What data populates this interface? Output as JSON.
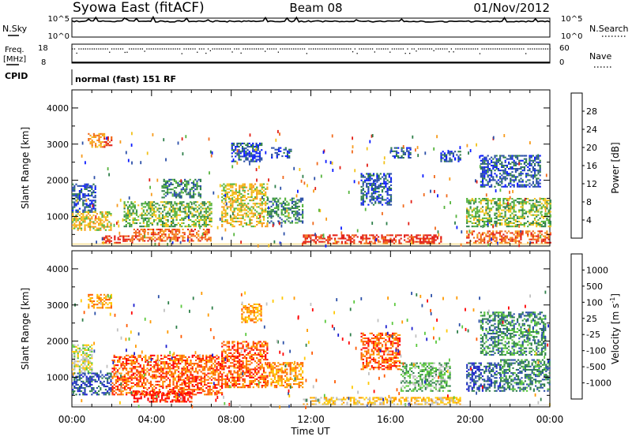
{
  "header": {
    "title": "Syowa East (fitACF)",
    "beam": "Beam 08",
    "date": "01/Nov/2012"
  },
  "nsky": {
    "label": "N.Sky",
    "left_ticks": [
      "10^5",
      "10^0"
    ],
    "right_label": "N.Search",
    "right_ticks": [
      "10^5",
      "10^0"
    ],
    "range_log": [
      0,
      5
    ],
    "level_log": 4.3
  },
  "freq": {
    "label_line1": "Freq.",
    "label_line2": "[MHz]",
    "left_ticks": [
      "18",
      "8"
    ],
    "right_label": "Nave",
    "right_ticks": [
      "60",
      "0"
    ],
    "freq_mhz_range": [
      8,
      18
    ],
    "nave_range": [
      0,
      60
    ],
    "nave_level": 48,
    "freq_level_mhz": 8
  },
  "cpid": {
    "label": "CPID",
    "text": "normal (fast) 151 RF"
  },
  "xaxis": {
    "label": "Time UT",
    "ticks": [
      "00:00",
      "04:00",
      "08:00",
      "12:00",
      "16:00",
      "20:00",
      "00:00"
    ],
    "range_hours": [
      0,
      24
    ]
  },
  "colors": {
    "power": [
      "#0a1aff",
      "#2b4fa8",
      "#2e7f4a",
      "#55b43c",
      "#f2c21a",
      "#f79b1c",
      "#f16a1c",
      "#e31e14"
    ],
    "velocity": [
      "#ff0000",
      "#ff5a00",
      "#ff9a00",
      "#ffc800",
      "#c0c0c0",
      "#5ac83c",
      "#2e7f4a",
      "#2b4fa8",
      "#1b1fd0"
    ]
  },
  "chart_data": [
    {
      "type": "heatmap",
      "name": "power",
      "ylabel": "Slant Range [km]",
      "yticks": [
        "4000",
        "3000",
        "2000",
        "1000"
      ],
      "ylim_km": [
        180,
        4500
      ],
      "colorbar_label": "Power [dB]",
      "colorbar_ticks": [
        "28",
        "24",
        "20",
        "16",
        "12",
        "8",
        "4"
      ],
      "colorbar_range": [
        0,
        32
      ],
      "grid": false,
      "bands": [
        {
          "t0": 0.0,
          "t1": 1.2,
          "r0": 1100,
          "r1": 1900,
          "c": 1
        },
        {
          "t0": 0.0,
          "t1": 2.0,
          "r0": 600,
          "r1": 1100,
          "c": 4
        },
        {
          "t0": 0.8,
          "t1": 1.6,
          "r0": 2900,
          "r1": 3300,
          "c": 5
        },
        {
          "t0": 1.6,
          "t1": 2.0,
          "r0": 2900,
          "r1": 3200,
          "c": 7
        },
        {
          "t0": 1.5,
          "t1": 3.0,
          "r0": 250,
          "r1": 450,
          "c": 7
        },
        {
          "t0": 2.6,
          "t1": 7.0,
          "r0": 700,
          "r1": 1400,
          "c": 3
        },
        {
          "t0": 3.0,
          "t1": 7.0,
          "r0": 300,
          "r1": 650,
          "c": 6
        },
        {
          "t0": 4.5,
          "t1": 6.5,
          "r0": 1500,
          "r1": 2000,
          "c": 2
        },
        {
          "t0": 7.5,
          "t1": 9.8,
          "r0": 700,
          "r1": 1900,
          "c": 4
        },
        {
          "t0": 8.0,
          "t1": 9.5,
          "r0": 2500,
          "r1": 3000,
          "c": 1
        },
        {
          "t0": 9.8,
          "t1": 11.6,
          "r0": 800,
          "r1": 1500,
          "c": 2
        },
        {
          "t0": 10.0,
          "t1": 11.0,
          "r0": 2600,
          "r1": 2900,
          "c": 1
        },
        {
          "t0": 11.6,
          "t1": 18.5,
          "r0": 230,
          "r1": 480,
          "c": 7
        },
        {
          "t0": 14.5,
          "t1": 16.0,
          "r0": 1300,
          "r1": 2200,
          "c": 1
        },
        {
          "t0": 16.0,
          "t1": 17.0,
          "r0": 2600,
          "r1": 2900,
          "c": 1
        },
        {
          "t0": 18.5,
          "t1": 19.5,
          "r0": 2500,
          "r1": 2800,
          "c": 1
        },
        {
          "t0": 19.8,
          "t1": 24.0,
          "r0": 700,
          "r1": 1500,
          "c": 3
        },
        {
          "t0": 19.8,
          "t1": 24.0,
          "r0": 250,
          "r1": 600,
          "c": 6
        },
        {
          "t0": 20.5,
          "t1": 23.5,
          "r0": 1800,
          "r1": 2700,
          "c": 1
        }
      ]
    },
    {
      "type": "heatmap",
      "name": "velocity",
      "ylabel": "Slant Range [km]",
      "yticks": [
        "4000",
        "3000",
        "2000",
        "1000"
      ],
      "ylim_km": [
        180,
        4500
      ],
      "colorbar_label": "Velocity [m s^-1]",
      "colorbar_ticks": [
        "1000",
        "500",
        "100",
        "25",
        "-25",
        "-100",
        "-500",
        "-1000"
      ],
      "colorbar_range": [
        -1000,
        1000
      ],
      "grid": false,
      "bands": [
        {
          "t0": 0.0,
          "t1": 1.0,
          "r0": 1100,
          "r1": 1900,
          "c": 4
        },
        {
          "t0": 0.0,
          "t1": 2.0,
          "r0": 500,
          "r1": 1100,
          "c": 7
        },
        {
          "t0": 0.8,
          "t1": 2.0,
          "r0": 2900,
          "r1": 3300,
          "c": 2
        },
        {
          "t0": 2.0,
          "t1": 7.5,
          "r0": 500,
          "r1": 1600,
          "c": 1
        },
        {
          "t0": 3.0,
          "t1": 6.0,
          "r0": 300,
          "r1": 600,
          "c": 0
        },
        {
          "t0": 7.5,
          "t1": 9.8,
          "r0": 700,
          "r1": 2000,
          "c": 1
        },
        {
          "t0": 8.5,
          "t1": 9.5,
          "r0": 2500,
          "r1": 3000,
          "c": 2
        },
        {
          "t0": 9.8,
          "t1": 11.6,
          "r0": 700,
          "r1": 1400,
          "c": 2
        },
        {
          "t0": 11.6,
          "t1": 19.5,
          "r0": 230,
          "r1": 450,
          "c": 3
        },
        {
          "t0": 14.5,
          "t1": 16.5,
          "r0": 1200,
          "r1": 2200,
          "c": 1
        },
        {
          "t0": 16.5,
          "t1": 19.0,
          "r0": 600,
          "r1": 1400,
          "c": 5
        },
        {
          "t0": 19.8,
          "t1": 21.5,
          "r0": 600,
          "r1": 1400,
          "c": 7
        },
        {
          "t0": 21.5,
          "t1": 24.0,
          "r0": 600,
          "r1": 1500,
          "c": 6
        },
        {
          "t0": 20.5,
          "t1": 23.8,
          "r0": 1600,
          "r1": 2800,
          "c": 6
        }
      ]
    }
  ]
}
